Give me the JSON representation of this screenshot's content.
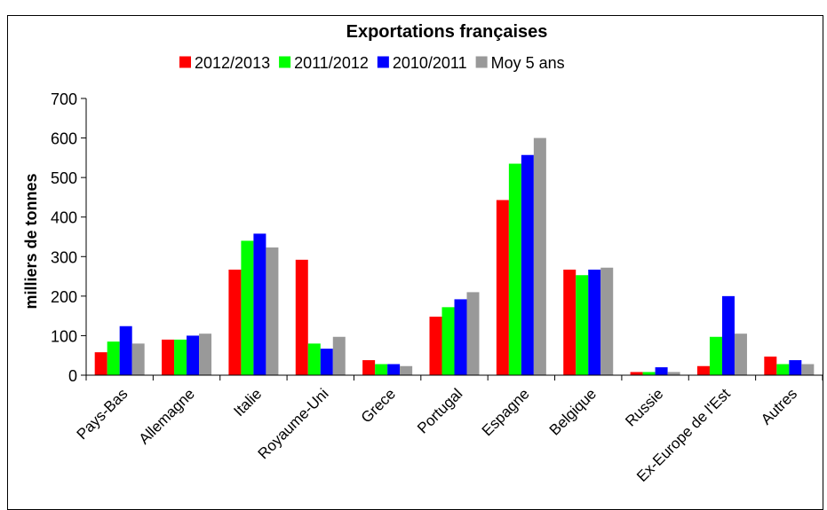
{
  "chart_data": {
    "type": "bar",
    "title": "Exportations françaises",
    "ylabel": "milliers de tonnes",
    "xlabel": "",
    "ylim": [
      0,
      700
    ],
    "yticks": [
      0,
      100,
      200,
      300,
      400,
      500,
      600,
      700
    ],
    "grid": false,
    "legend_position": "top",
    "categories": [
      "Pays-Bas",
      "Allemagne",
      "Italie",
      "Royaume-Uni",
      "Grece",
      "Portugal",
      "Espagne",
      "Belgique",
      "Russie",
      "Ex-Europe de l'Est",
      "Autres"
    ],
    "series": [
      {
        "name": "2012/2013",
        "color": "#ff0000",
        "values": [
          58,
          90,
          267,
          292,
          38,
          148,
          443,
          267,
          8,
          23,
          47
        ]
      },
      {
        "name": "2011/2012",
        "color": "#00ff00",
        "values": [
          85,
          90,
          340,
          80,
          28,
          172,
          535,
          253,
          8,
          97,
          28
        ]
      },
      {
        "name": "2010/2011",
        "color": "#0000ff",
        "values": [
          124,
          100,
          358,
          67,
          28,
          192,
          557,
          267,
          20,
          200,
          38
        ]
      },
      {
        "name": "Moy 5 ans",
        "color": "#999999",
        "values": [
          80,
          105,
          323,
          97,
          23,
          210,
          600,
          272,
          8,
          105,
          28
        ]
      }
    ]
  }
}
